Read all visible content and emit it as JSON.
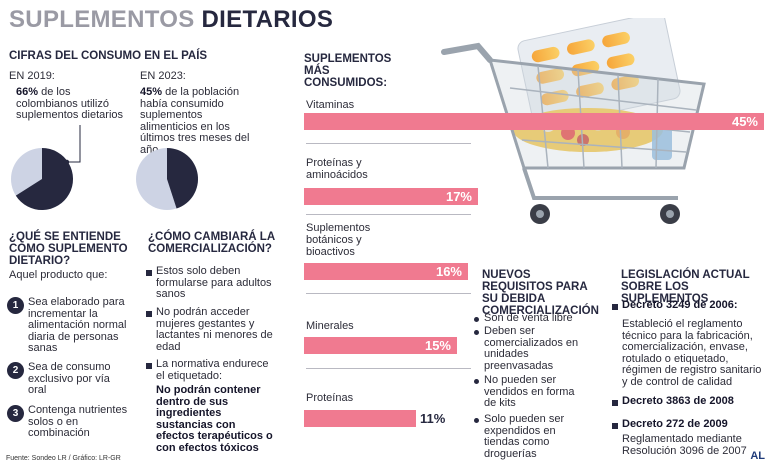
{
  "title": {
    "part1": "SUPLEMENTOS",
    "part2": "DIETARIOS"
  },
  "consumo": {
    "heading": "CIFRAS DEL CONSUMO EN EL PAÍS",
    "y2019": {
      "label": "EN 2019:",
      "pct": "66%",
      "text": " de los colombianos utilizó suplementos dietarios",
      "value": 66
    },
    "y2023": {
      "label": "EN 2023:",
      "pct": "45%",
      "text": " de la población había consumido suplementos alimenticios en los últimos tres meses del año",
      "value": 45
    }
  },
  "que_es": {
    "heading": "¿QUÉ SE ENTIENDE COMO SUPLEMENTO DIETARIO?",
    "intro": "Aquel producto que:",
    "items": [
      {
        "n": "1",
        "text": "Sea elaborado para incrementar la alimentación normal diaria de personas sanas"
      },
      {
        "n": "2",
        "text": "Sea de consumo exclusivo por vía oral"
      },
      {
        "n": "3",
        "text": "Contenga nutrientes solos o en combinación"
      }
    ]
  },
  "cambiara": {
    "heading": "¿CÓMO CAMBIARÁ LA COMERCIALIZACIÓN?",
    "items": [
      "Estos solo deben formularse para adultos sanos",
      "No podrán acceder mujeres gestantes y lactantes ni menores de edad",
      "La normativa endurece el etiquetado:"
    ],
    "bold_note": "No podrán contener dentro de sus ingredientes sustancias con efectos terapéuticos o con efectos tóxicos"
  },
  "mas_consumidos": {
    "heading": "SUPLEMENTOS MÁS CONSUMIDOS:"
  },
  "chart_data": {
    "type": "bar",
    "title": "SUPLEMENTOS MÁS CONSUMIDOS:",
    "categories": [
      "Vitaminas",
      "Proteínas y aminoácidos",
      "Suplementos botánicos y bioactivos",
      "Minerales",
      "Proteínas"
    ],
    "values": [
      45,
      17,
      16,
      15,
      11
    ],
    "value_labels": [
      "45%",
      "17%",
      "16%",
      "15%",
      "11%"
    ],
    "unit": "%"
  },
  "requisitos": {
    "heading": "NUEVOS REQUISITOS PARA SU DEBIDA COMERCIALIZACIÓN",
    "items": [
      "Son de venta libre",
      "Deben ser comercializados en unidades preenvasadas",
      "No pueden ser vendidos en forma de kits",
      "Solo pueden ser expendidos en tiendas como droguerías"
    ]
  },
  "legislacion": {
    "heading": "LEGISLACIÓN ACTUAL SOBRE LOS SUPLEMENTOS",
    "items": [
      {
        "decreto": "Decreto 3249 de 2006:",
        "text": "Estableció el reglamento técnico para la fabricación, comercialización, envase, rotulado o etiquetado, régimen de registro sanitario y de control de calidad"
      },
      {
        "decreto": "Decreto 3863 de 2008",
        "text": ""
      },
      {
        "decreto": "Decreto 272 de 2009",
        "text": "Reglamentado mediante Resolución 3096 de 2007"
      }
    ]
  },
  "footer": {
    "source": "Fuente: Sondeo LR / Gráfico: LR-GR",
    "logo": "AL"
  },
  "colors": {
    "bar": "#f07a90",
    "navy": "#26283f",
    "pie_light": "#cdd3e4"
  }
}
